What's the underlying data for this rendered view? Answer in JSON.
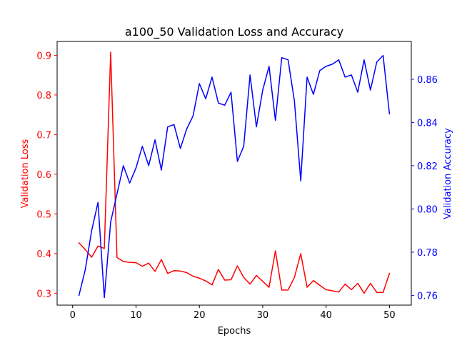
{
  "chart_data": {
    "type": "line",
    "title": "a100_50 Validation Loss and Accuracy",
    "xlabel": "Epochs",
    "ylabel_left": "Validation Loss",
    "ylabel_right": "Validation Accuracy",
    "xlim": [
      -2.45,
      53.45
    ],
    "ylim_left": [
      0.27,
      0.935
    ],
    "ylim_right": [
      0.7555,
      0.8775
    ],
    "x_ticks": [
      0,
      10,
      20,
      30,
      40,
      50
    ],
    "y_ticks_left": [
      0.3,
      0.4,
      0.5,
      0.6,
      0.7,
      0.8,
      0.9
    ],
    "y_ticks_right": [
      0.76,
      0.78,
      0.8,
      0.82,
      0.84,
      0.86
    ],
    "grid": false,
    "x": [
      1,
      2,
      3,
      4,
      5,
      6,
      7,
      8,
      9,
      10,
      11,
      12,
      13,
      14,
      15,
      16,
      17,
      18,
      19,
      20,
      21,
      22,
      23,
      24,
      25,
      26,
      27,
      28,
      29,
      30,
      31,
      32,
      33,
      34,
      35,
      36,
      37,
      38,
      39,
      40,
      41,
      42,
      43,
      44,
      45,
      46,
      47,
      48,
      49,
      50
    ],
    "series": [
      {
        "name": "Validation Loss",
        "axis": "left",
        "color": "#ff0000",
        "values": [
          0.427,
          0.41,
          0.391,
          0.419,
          0.413,
          0.908,
          0.39,
          0.38,
          0.378,
          0.377,
          0.368,
          0.376,
          0.355,
          0.385,
          0.35,
          0.357,
          0.356,
          0.352,
          0.343,
          0.338,
          0.331,
          0.321,
          0.36,
          0.333,
          0.334,
          0.369,
          0.34,
          0.323,
          0.345,
          0.33,
          0.315,
          0.407,
          0.308,
          0.308,
          0.34,
          0.4,
          0.315,
          0.332,
          0.32,
          0.309,
          0.306,
          0.303,
          0.323,
          0.309,
          0.325,
          0.3,
          0.325,
          0.302,
          0.302,
          0.35
        ]
      },
      {
        "name": "Validation Accuracy",
        "axis": "right",
        "color": "#0000ff",
        "values": [
          0.76,
          0.772,
          0.79,
          0.803,
          0.759,
          0.794,
          0.807,
          0.82,
          0.812,
          0.819,
          0.829,
          0.82,
          0.832,
          0.818,
          0.838,
          0.839,
          0.828,
          0.837,
          0.843,
          0.858,
          0.851,
          0.861,
          0.849,
          0.848,
          0.854,
          0.822,
          0.829,
          0.862,
          0.838,
          0.855,
          0.866,
          0.841,
          0.87,
          0.869,
          0.85,
          0.813,
          0.861,
          0.853,
          0.864,
          0.866,
          0.867,
          0.869,
          0.861,
          0.862,
          0.854,
          0.869,
          0.855,
          0.868,
          0.871,
          0.844
        ]
      }
    ]
  }
}
